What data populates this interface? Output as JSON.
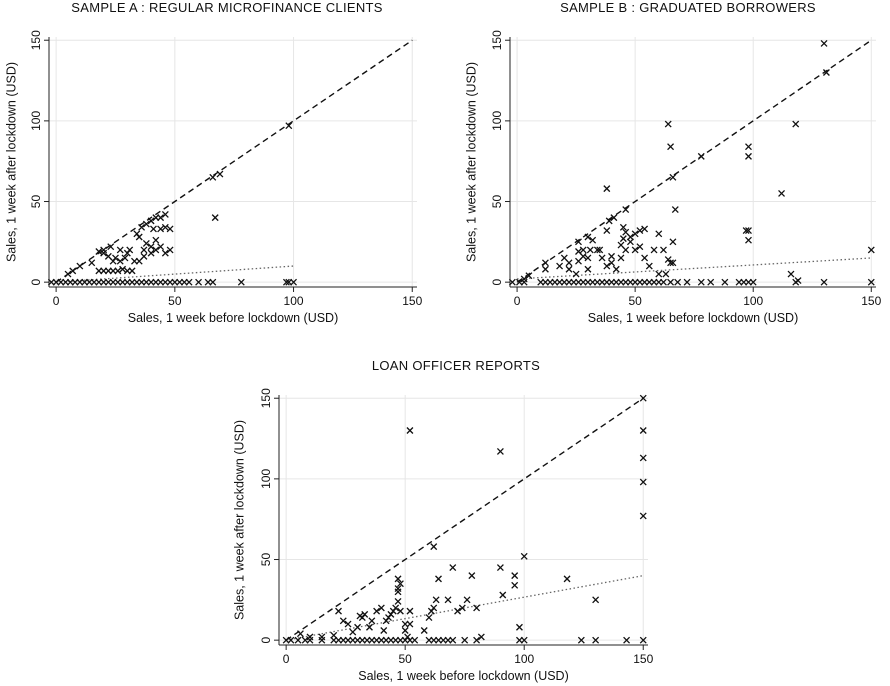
{
  "chart_data": [
    {
      "type": "scatter",
      "title": "SAMPLE A : REGULAR MICROFINANCE CLIENTS",
      "xlabel": "Sales, 1 week before lockdown (USD)",
      "ylabel": "Sales, 1 week after lockdown (USD)",
      "xlim": [
        -3,
        152
      ],
      "ylim": [
        -3,
        152
      ],
      "xticks": [
        0,
        50,
        100,
        150
      ],
      "yticks": [
        0,
        50,
        100,
        150
      ],
      "xtick_labels": [
        "0",
        "50",
        "100",
        "150"
      ],
      "ytick_labels": [
        "0",
        "50",
        "100",
        "150"
      ],
      "grid": true,
      "reference_line": {
        "style": "dashed",
        "x": [
          0,
          150
        ],
        "y": [
          0,
          150
        ]
      },
      "fit_line": {
        "style": "dotted",
        "x": [
          0,
          100
        ],
        "y": [
          0,
          10
        ]
      },
      "points": [
        [
          -2,
          0
        ],
        [
          0,
          0
        ],
        [
          2,
          0
        ],
        [
          4,
          0
        ],
        [
          6,
          0
        ],
        [
          8,
          0
        ],
        [
          10,
          0
        ],
        [
          12,
          0
        ],
        [
          14,
          0
        ],
        [
          16,
          0
        ],
        [
          18,
          0
        ],
        [
          20,
          0
        ],
        [
          22,
          0
        ],
        [
          24,
          0
        ],
        [
          26,
          0
        ],
        [
          28,
          0
        ],
        [
          30,
          0
        ],
        [
          32,
          0
        ],
        [
          34,
          0
        ],
        [
          36,
          0
        ],
        [
          38,
          0
        ],
        [
          40,
          0
        ],
        [
          42,
          0
        ],
        [
          44,
          0
        ],
        [
          46,
          0
        ],
        [
          48,
          0
        ],
        [
          50,
          0
        ],
        [
          52,
          0
        ],
        [
          54,
          0
        ],
        [
          56,
          0
        ],
        [
          60,
          0
        ],
        [
          64,
          0
        ],
        [
          66,
          0
        ],
        [
          78,
          0
        ],
        [
          97,
          0
        ],
        [
          98,
          0
        ],
        [
          100,
          0
        ],
        [
          5,
          5
        ],
        [
          7,
          7
        ],
        [
          10,
          10
        ],
        [
          15,
          12
        ],
        [
          18,
          7
        ],
        [
          20,
          7
        ],
        [
          22,
          7
        ],
        [
          24,
          7
        ],
        [
          26,
          7
        ],
        [
          28,
          8
        ],
        [
          30,
          7
        ],
        [
          32,
          7
        ],
        [
          18,
          19
        ],
        [
          20,
          18
        ],
        [
          22,
          16
        ],
        [
          24,
          13
        ],
        [
          27,
          13
        ],
        [
          29,
          15
        ],
        [
          31,
          20
        ],
        [
          33,
          13
        ],
        [
          35,
          13
        ],
        [
          37,
          16
        ],
        [
          20,
          20
        ],
        [
          23,
          22
        ],
        [
          25,
          15
        ],
        [
          27,
          20
        ],
        [
          30,
          18
        ],
        [
          34,
          30
        ],
        [
          36,
          34
        ],
        [
          38,
          36
        ],
        [
          40,
          38
        ],
        [
          42,
          40
        ],
        [
          44,
          40
        ],
        [
          46,
          42
        ],
        [
          35,
          28
        ],
        [
          38,
          24
        ],
        [
          40,
          22
        ],
        [
          42,
          26
        ],
        [
          44,
          22
        ],
        [
          46,
          18
        ],
        [
          48,
          20
        ],
        [
          41,
          33
        ],
        [
          44,
          33
        ],
        [
          48,
          33
        ],
        [
          37,
          20
        ],
        [
          40,
          18
        ],
        [
          42,
          20
        ],
        [
          46,
          34
        ],
        [
          67,
          40
        ],
        [
          66,
          65
        ],
        [
          69,
          67
        ],
        [
          98,
          97
        ]
      ]
    },
    {
      "type": "scatter",
      "title": "SAMPLE B : GRADUATED BORROWERS",
      "xlabel": "Sales, 1 week before lockdown (USD)",
      "ylabel": "Sales, 1 week after lockdown (USD)",
      "xlim": [
        -3,
        152
      ],
      "ylim": [
        -3,
        152
      ],
      "xticks": [
        0,
        50,
        100,
        150
      ],
      "yticks": [
        0,
        50,
        100,
        150
      ],
      "xtick_labels": [
        "0",
        "50",
        "100",
        "150"
      ],
      "ytick_labels": [
        "0",
        "50",
        "100",
        "150"
      ],
      "grid": true,
      "reference_line": {
        "style": "dashed",
        "x": [
          0,
          150
        ],
        "y": [
          0,
          150
        ]
      },
      "fit_line": {
        "style": "dotted",
        "x": [
          0,
          150
        ],
        "y": [
          2,
          15
        ]
      },
      "points": [
        [
          -2,
          0
        ],
        [
          1,
          0
        ],
        [
          3,
          0
        ],
        [
          10,
          0
        ],
        [
          12,
          0
        ],
        [
          14,
          0
        ],
        [
          16,
          0
        ],
        [
          18,
          0
        ],
        [
          20,
          0
        ],
        [
          22,
          0
        ],
        [
          24,
          0
        ],
        [
          26,
          0
        ],
        [
          28,
          0
        ],
        [
          30,
          0
        ],
        [
          32,
          0
        ],
        [
          34,
          0
        ],
        [
          36,
          0
        ],
        [
          38,
          0
        ],
        [
          40,
          0
        ],
        [
          42,
          0
        ],
        [
          44,
          0
        ],
        [
          46,
          0
        ],
        [
          48,
          0
        ],
        [
          50,
          0
        ],
        [
          52,
          0
        ],
        [
          54,
          0
        ],
        [
          56,
          0
        ],
        [
          58,
          0
        ],
        [
          60,
          0
        ],
        [
          62,
          0
        ],
        [
          65,
          0
        ],
        [
          68,
          0
        ],
        [
          72,
          0
        ],
        [
          78,
          0
        ],
        [
          82,
          0
        ],
        [
          88,
          0
        ],
        [
          94,
          0
        ],
        [
          96,
          0
        ],
        [
          98,
          0
        ],
        [
          100,
          0
        ],
        [
          118,
          0
        ],
        [
          130,
          0
        ],
        [
          150,
          0
        ],
        [
          3,
          2
        ],
        [
          5,
          4
        ],
        [
          12,
          12
        ],
        [
          18,
          10
        ],
        [
          20,
          15
        ],
        [
          22,
          8
        ],
        [
          25,
          5
        ],
        [
          26,
          13
        ],
        [
          28,
          20
        ],
        [
          30,
          15
        ],
        [
          31,
          20
        ],
        [
          35,
          20
        ],
        [
          36,
          15
        ],
        [
          38,
          10
        ],
        [
          40,
          12
        ],
        [
          42,
          8
        ],
        [
          44,
          15
        ],
        [
          46,
          20
        ],
        [
          48,
          25
        ],
        [
          50,
          20
        ],
        [
          52,
          22
        ],
        [
          54,
          15
        ],
        [
          56,
          10
        ],
        [
          58,
          20
        ],
        [
          60,
          30
        ],
        [
          62,
          20
        ],
        [
          64,
          14
        ],
        [
          66,
          12
        ],
        [
          50,
          30
        ],
        [
          52,
          32
        ],
        [
          54,
          33
        ],
        [
          46,
          31
        ],
        [
          45,
          27
        ],
        [
          48,
          28
        ],
        [
          44,
          23
        ],
        [
          26,
          19
        ],
        [
          28,
          16
        ],
        [
          40,
          16
        ],
        [
          30,
          8
        ],
        [
          22,
          12
        ],
        [
          12,
          8
        ],
        [
          26,
          25
        ],
        [
          32,
          26
        ],
        [
          34,
          20
        ],
        [
          38,
          32
        ],
        [
          45,
          34
        ],
        [
          30,
          28
        ],
        [
          39,
          38
        ],
        [
          41,
          40
        ],
        [
          38,
          58
        ],
        [
          46,
          45
        ],
        [
          60,
          5
        ],
        [
          63,
          5
        ],
        [
          65,
          12
        ],
        [
          66,
          25
        ],
        [
          67,
          45
        ],
        [
          66,
          65
        ],
        [
          65,
          84
        ],
        [
          64,
          98
        ],
        [
          78,
          78
        ],
        [
          98,
          78
        ],
        [
          98,
          84
        ],
        [
          98,
          32
        ],
        [
          98,
          26
        ],
        [
          97,
          32
        ],
        [
          112,
          55
        ],
        [
          118,
          98
        ],
        [
          130,
          148
        ],
        [
          131,
          130
        ],
        [
          150,
          20
        ],
        [
          116,
          5
        ],
        [
          119,
          1
        ]
      ]
    },
    {
      "type": "scatter",
      "title": "LOAN OFFICER REPORTS",
      "xlabel": "Sales, 1 week before lockdown (USD)",
      "ylabel": "Sales, 1 week after lockdown (USD)",
      "xlim": [
        -3,
        152
      ],
      "ylim": [
        -3,
        152
      ],
      "xticks": [
        0,
        50,
        100,
        150
      ],
      "yticks": [
        0,
        50,
        100,
        150
      ],
      "xtick_labels": [
        "0",
        "50",
        "100",
        "150"
      ],
      "ytick_labels": [
        "0",
        "50",
        "100",
        "150"
      ],
      "grid": true,
      "reference_line": {
        "style": "dashed",
        "x": [
          0,
          150
        ],
        "y": [
          0,
          150
        ]
      },
      "fit_line": {
        "style": "dotted",
        "x": [
          0,
          150
        ],
        "y": [
          0,
          40
        ]
      },
      "points": [
        [
          0,
          0
        ],
        [
          2,
          0
        ],
        [
          5,
          0
        ],
        [
          8,
          0
        ],
        [
          10,
          0
        ],
        [
          15,
          0
        ],
        [
          20,
          0
        ],
        [
          22,
          0
        ],
        [
          24,
          0
        ],
        [
          26,
          0
        ],
        [
          28,
          0
        ],
        [
          30,
          0
        ],
        [
          32,
          0
        ],
        [
          34,
          0
        ],
        [
          36,
          0
        ],
        [
          38,
          0
        ],
        [
          40,
          0
        ],
        [
          42,
          0
        ],
        [
          44,
          0
        ],
        [
          46,
          0
        ],
        [
          48,
          0
        ],
        [
          50,
          0
        ],
        [
          52,
          0
        ],
        [
          54,
          0
        ],
        [
          60,
          0
        ],
        [
          62,
          0
        ],
        [
          64,
          0
        ],
        [
          66,
          0
        ],
        [
          68,
          0
        ],
        [
          70,
          0
        ],
        [
          75,
          0
        ],
        [
          80,
          0
        ],
        [
          98,
          0
        ],
        [
          100,
          0
        ],
        [
          124,
          0
        ],
        [
          130,
          0
        ],
        [
          143,
          0
        ],
        [
          150,
          0
        ],
        [
          6,
          4
        ],
        [
          10,
          2
        ],
        [
          15,
          2
        ],
        [
          20,
          3
        ],
        [
          22,
          18
        ],
        [
          24,
          12
        ],
        [
          26,
          10
        ],
        [
          28,
          5
        ],
        [
          30,
          8
        ],
        [
          31,
          15
        ],
        [
          32,
          14
        ],
        [
          33,
          16
        ],
        [
          35,
          8
        ],
        [
          36,
          12
        ],
        [
          38,
          18
        ],
        [
          40,
          20
        ],
        [
          41,
          6
        ],
        [
          42,
          12
        ],
        [
          43,
          14
        ],
        [
          44,
          16
        ],
        [
          45,
          18
        ],
        [
          46,
          20
        ],
        [
          47,
          32
        ],
        [
          48,
          35
        ],
        [
          47,
          38
        ],
        [
          47,
          24
        ],
        [
          47,
          30
        ],
        [
          48,
          18
        ],
        [
          50,
          10
        ],
        [
          50,
          6
        ],
        [
          51,
          2
        ],
        [
          52,
          18
        ],
        [
          52,
          10
        ],
        [
          58,
          6
        ],
        [
          60,
          14
        ],
        [
          61,
          18
        ],
        [
          62,
          20
        ],
        [
          63,
          25
        ],
        [
          64,
          38
        ],
        [
          68,
          25
        ],
        [
          70,
          45
        ],
        [
          72,
          18
        ],
        [
          74,
          20
        ],
        [
          76,
          25
        ],
        [
          78,
          40
        ],
        [
          80,
          20
        ],
        [
          82,
          2
        ],
        [
          90,
          45
        ],
        [
          91,
          28
        ],
        [
          96,
          40
        ],
        [
          96,
          34
        ],
        [
          98,
          8
        ],
        [
          100,
          52
        ],
        [
          52,
          130
        ],
        [
          90,
          117
        ],
        [
          118,
          38
        ],
        [
          130,
          25
        ],
        [
          62,
          58
        ],
        [
          150,
          150
        ],
        [
          150,
          130
        ],
        [
          150,
          113
        ],
        [
          150,
          98
        ],
        [
          150,
          77
        ]
      ]
    }
  ]
}
